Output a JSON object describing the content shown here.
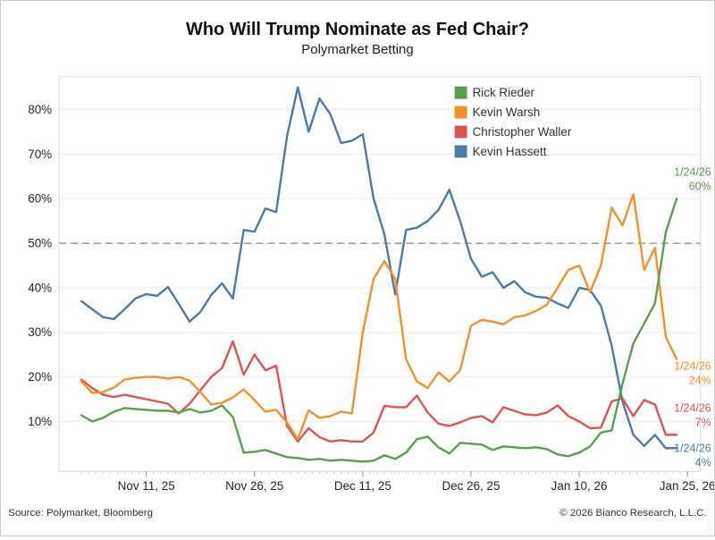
{
  "chart_data": {
    "type": "line",
    "title": "Who Will Trump Nominate as Fed Chair?",
    "subtitle": "Polymarket Betting",
    "legend_position": "top-right",
    "grid": true,
    "y_axis": {
      "unit": "%",
      "min": 0,
      "max": 87,
      "ticks": [
        {
          "v": 10,
          "label": "10%"
        },
        {
          "v": 20,
          "label": "20%"
        },
        {
          "v": 30,
          "label": "30%"
        },
        {
          "v": 40,
          "label": "40%"
        },
        {
          "v": 50,
          "label": "50%"
        },
        {
          "v": 60,
          "label": "60%"
        },
        {
          "v": 70,
          "label": "70%"
        },
        {
          "v": 80,
          "label": "80%"
        }
      ]
    },
    "x_axis": {
      "total_days": 84,
      "minor_tick_every_days": 1,
      "ticks": [
        {
          "day": 9,
          "label": "Nov 11, 25"
        },
        {
          "day": 24,
          "label": "Nov 26, 25"
        },
        {
          "day": 39,
          "label": "Dec 11, 25"
        },
        {
          "day": 54,
          "label": "Dec 26, 25"
        },
        {
          "day": 69,
          "label": "Jan 10, 26"
        },
        {
          "day": 84,
          "label": "Jan 25, 26"
        }
      ]
    },
    "reference_line": {
      "value": 50,
      "style": "dashed",
      "color": "#9b9b9b"
    },
    "x_days": [
      0,
      1.5,
      3,
      4.5,
      6,
      7.5,
      9,
      10.5,
      12,
      13.5,
      15,
      16.5,
      18,
      19.5,
      21,
      22.5,
      24,
      25.5,
      27,
      28.5,
      30,
      31.5,
      33,
      34.5,
      36,
      37.5,
      39,
      40.5,
      42,
      43.5,
      45,
      46.5,
      48,
      49.5,
      51,
      52.5,
      54,
      55.5,
      57,
      58.5,
      60,
      61.5,
      63,
      64.5,
      66,
      67.5,
      69,
      70.5,
      72,
      73.5,
      75,
      76.5,
      78,
      79.5,
      81,
      82.5
    ],
    "series": [
      {
        "name": "Rick Rieder",
        "color": "#5b9e50",
        "values": [
          11.4,
          10,
          10.8,
          12.2,
          13,
          12.8,
          12.6,
          12.4,
          12.4,
          12,
          12.8,
          12,
          12.4,
          13.6,
          11,
          3,
          3.2,
          3.6,
          2.8,
          2,
          1.8,
          1.4,
          1.6,
          1.2,
          1.4,
          1.2,
          1,
          1.2,
          2.4,
          1.6,
          3,
          6,
          6.6,
          4.2,
          2.8,
          5.2,
          5,
          4.8,
          3.6,
          4.4,
          4.2,
          4,
          4.2,
          3.8,
          2.6,
          2.2,
          3,
          4.4,
          7.5,
          8,
          18.5,
          27.5,
          32,
          36.5,
          52.5,
          60
        ]
      },
      {
        "name": "Kevin Warsh",
        "color": "#f0912d",
        "values": [
          19,
          16.4,
          16.6,
          17.6,
          19.4,
          19.8,
          20,
          20,
          19.6,
          20,
          19.2,
          16.6,
          13.8,
          14.2,
          15.4,
          17.2,
          14.8,
          12.2,
          12.6,
          9.8,
          6,
          12.5,
          10.8,
          11.2,
          12.2,
          11.8,
          30,
          42,
          46,
          42,
          24,
          19,
          17.5,
          21,
          19,
          21.5,
          31.5,
          32.8,
          32.4,
          31.8,
          33.4,
          33.8,
          34.8,
          36.2,
          40,
          44,
          45,
          39,
          45,
          58,
          54,
          61,
          44,
          49,
          29,
          24
        ]
      },
      {
        "name": "Christopher Waller",
        "color": "#dc5456",
        "values": [
          19.4,
          17.5,
          16,
          15.5,
          16,
          15.5,
          15,
          14.5,
          14,
          11.8,
          14,
          17,
          20,
          22,
          28,
          20.5,
          25,
          21.5,
          22.5,
          9,
          5.5,
          8.5,
          6.5,
          5.5,
          5.8,
          5.5,
          5.5,
          7.5,
          13.5,
          13.2,
          13.2,
          15.8,
          12,
          9.5,
          9,
          9.8,
          10.8,
          11.2,
          9.8,
          13.2,
          12.4,
          11.6,
          11.4,
          12,
          13.6,
          11.2,
          10,
          8.5,
          8.6,
          14.5,
          15.2,
          11.2,
          14.8,
          13.8,
          7,
          7
        ]
      },
      {
        "name": "Kevin Hassett",
        "color": "#4e7aa8",
        "values": [
          37,
          35.2,
          33.4,
          33,
          35.2,
          37.6,
          38.6,
          38.2,
          40.2,
          36.4,
          32.4,
          34.6,
          38.4,
          41,
          37.6,
          53,
          52.6,
          57.8,
          57,
          74,
          85,
          75,
          82.5,
          79,
          72.5,
          73,
          74.5,
          60,
          52,
          38.5,
          53,
          53.5,
          55,
          57.5,
          62,
          55,
          46.5,
          42.5,
          43.5,
          40,
          41.5,
          39,
          38,
          37.8,
          36.5,
          35.5,
          40,
          39.5,
          36,
          27,
          14.5,
          7,
          4.5,
          7,
          4,
          4
        ]
      }
    ],
    "annotations": [
      {
        "series": "Rick Rieder",
        "date": "1/24/26",
        "value": "60%",
        "placement": "above"
      },
      {
        "series": "Kevin Warsh",
        "date": "1/24/26",
        "value": "24%",
        "placement": "below"
      },
      {
        "series": "Christopher Waller",
        "date": "1/24/26",
        "value": "7%",
        "placement": "above"
      },
      {
        "series": "Kevin Hassett",
        "date": "1/24/26",
        "value": "4%",
        "placement": "middle"
      }
    ]
  },
  "footer": {
    "source": "Source: Polymarket, Bloomberg",
    "copyright": "© 2026 Bianco Research, L.L.C."
  }
}
